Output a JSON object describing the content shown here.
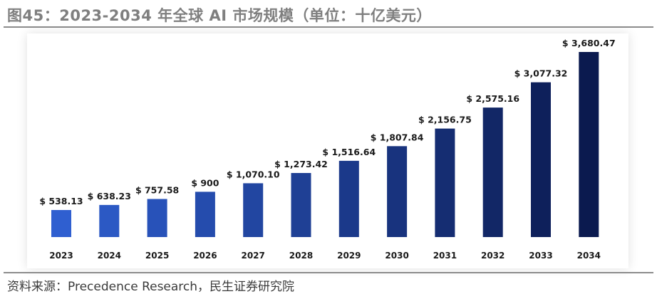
{
  "header": {
    "title": "图45：2023-2034 年全球 AI 市场规模（单位：十亿美元）"
  },
  "footer": {
    "source": "资料来源：Precedence Research，民生证券研究院"
  },
  "colors": {
    "bar_start": "#2f5fd0",
    "bar_end": "#0b1a4f",
    "rule": "#8c8c8c",
    "title": "#7f7f7f"
  },
  "chart_data": {
    "type": "bar",
    "title": "",
    "xlabel": "",
    "ylabel": "",
    "grid": false,
    "legend": "none",
    "categories": [
      "2023",
      "2024",
      "2025",
      "2026",
      "2027",
      "2028",
      "2029",
      "2030",
      "2031",
      "2032",
      "2033",
      "2034"
    ],
    "values": [
      538.13,
      638.23,
      757.58,
      900,
      1070.1,
      1273.42,
      1516.64,
      1807.84,
      2156.75,
      2575.16,
      3077.32,
      3680.47
    ],
    "labels": [
      "$ 538.13",
      "$ 638.23",
      "$  757.58",
      "$ 900",
      "$ 1,070.10",
      "$ 1,273.42",
      "$ 1,516.64",
      "$ 1,807.84",
      "$ 2,156.75",
      "$ 2,575.16",
      "$ 3,077.32",
      "$ 3,680.47"
    ]
  }
}
